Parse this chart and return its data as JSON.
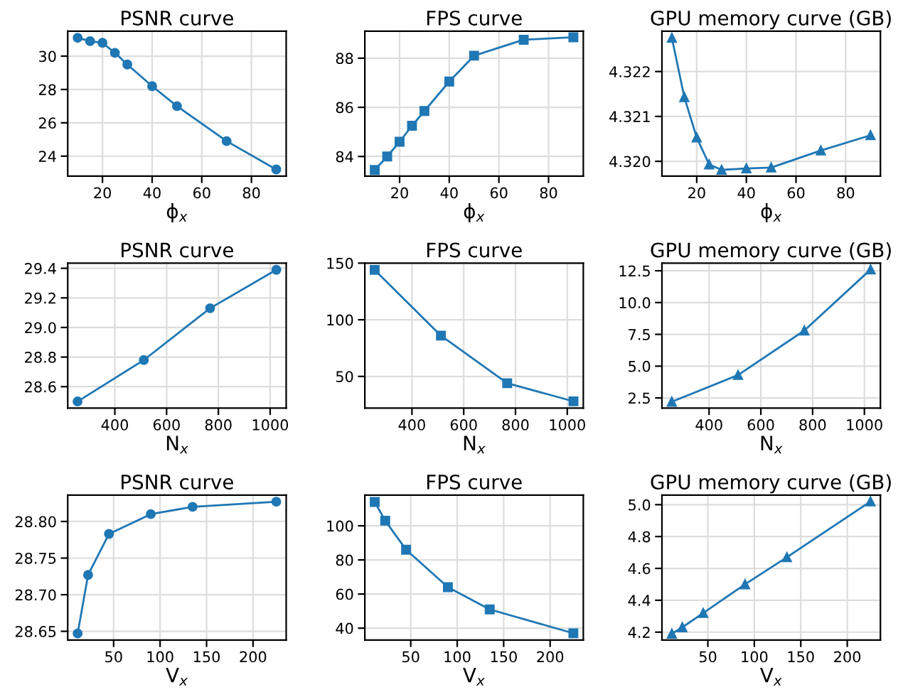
{
  "chart_data": [
    {
      "type": "line",
      "title": "PSNR curve",
      "xlabel": "ϕ$_{x}$",
      "x": [
        10,
        15,
        20,
        25,
        30,
        40,
        50,
        70,
        90
      ],
      "series": [
        {
          "color": "#1f77b4",
          "values": [
            31.1,
            30.9,
            30.8,
            30.2,
            29.5,
            28.2,
            27.0,
            24.9,
            23.2
          ]
        }
      ],
      "marker": "circle",
      "grid": true,
      "xlim": [
        6,
        94
      ],
      "xticks": [
        20,
        40,
        60,
        80
      ],
      "ylim": [
        22.8,
        31.5
      ],
      "yticks": [
        24,
        26,
        28,
        30
      ]
    },
    {
      "type": "line",
      "title": "FPS curve",
      "xlabel": "ϕ$_{x}$",
      "x": [
        10,
        15,
        20,
        25,
        30,
        40,
        50,
        70,
        90
      ],
      "series": [
        {
          "color": "#1f77b4",
          "values": [
            83.45,
            84.0,
            84.6,
            85.25,
            85.85,
            87.05,
            88.1,
            88.75,
            88.85
          ]
        }
      ],
      "marker": "square",
      "grid": true,
      "xlim": [
        6,
        94
      ],
      "xticks": [
        20,
        40,
        60,
        80
      ],
      "ylim": [
        83.2,
        89.1
      ],
      "yticks": [
        84,
        86,
        88
      ]
    },
    {
      "type": "line",
      "title": "GPU memory curve (GB)",
      "xlabel": "ϕ$_{x}$",
      "x": [
        10,
        15,
        20,
        25,
        30,
        40,
        50,
        70,
        90
      ],
      "series": [
        {
          "color": "#1f77b4",
          "values": [
            4.32275,
            4.32143,
            4.32053,
            4.31993,
            4.31981,
            4.31984,
            4.31986,
            4.32024,
            4.32058
          ]
        }
      ],
      "marker": "triangle",
      "grid": true,
      "xlim": [
        6,
        94
      ],
      "xticks": [
        20,
        40,
        60,
        80
      ],
      "ylim": [
        4.31967,
        4.3229
      ],
      "yticks": [
        {
          "value": 4.32,
          "label": "4.320"
        },
        4.321,
        4.322
      ]
    },
    {
      "type": "line",
      "title": "PSNR curve",
      "xlabel": "N$_{x}$",
      "x": [
        256,
        512,
        768,
        1024
      ],
      "series": [
        {
          "color": "#1f77b4",
          "values": [
            28.5,
            28.78,
            29.13,
            29.39
          ]
        }
      ],
      "marker": "circle",
      "grid": true,
      "xlim": [
        218,
        1062
      ],
      "xticks": [
        400,
        600,
        800,
        1000
      ],
      "ylim": [
        28.455,
        29.435
      ],
      "yticks": [
        28.6,
        28.8,
        {
          "value": 29,
          "label": "29.0"
        },
        29.2,
        29.4
      ]
    },
    {
      "type": "line",
      "title": "FPS curve",
      "xlabel": "N$_{x}$",
      "x": [
        256,
        512,
        768,
        1024
      ],
      "series": [
        {
          "color": "#1f77b4",
          "values": [
            144,
            86,
            44,
            28
          ]
        }
      ],
      "marker": "square",
      "grid": true,
      "xlim": [
        218,
        1062
      ],
      "xticks": [
        400,
        600,
        800,
        1000
      ],
      "ylim": [
        22,
        150
      ],
      "yticks": [
        50,
        100,
        150
      ]
    },
    {
      "type": "line",
      "title": "GPU memory curve (GB)",
      "xlabel": "N$_{x}$",
      "x": [
        256,
        512,
        768,
        1024
      ],
      "series": [
        {
          "color": "#1f77b4",
          "values": [
            2.2,
            4.3,
            7.8,
            12.6
          ]
        }
      ],
      "marker": "triangle",
      "grid": true,
      "xlim": [
        218,
        1062
      ],
      "xticks": [
        400,
        600,
        800,
        1000
      ],
      "ylim": [
        1.7,
        13.1
      ],
      "yticks": [
        2.5,
        {
          "value": 5,
          "label": "5.0"
        },
        7.5,
        {
          "value": 10,
          "label": "10.0"
        },
        12.5
      ]
    },
    {
      "type": "line",
      "title": "PSNR curve",
      "xlabel": "V$_{x}$",
      "x": [
        11.25,
        22.5,
        45,
        90,
        135,
        225
      ],
      "series": [
        {
          "color": "#1f77b4",
          "values": [
            28.647,
            28.727,
            28.783,
            28.81,
            28.82,
            28.827
          ]
        }
      ],
      "marker": "circle",
      "grid": true,
      "xlim": [
        0.6,
        235.7
      ],
      "xticks": [
        50,
        100,
        150,
        200
      ],
      "ylim": [
        28.638,
        28.836
      ],
      "yticks": [
        28.65,
        {
          "value": 28.7,
          "label": "28.70"
        },
        28.75,
        {
          "value": 28.8,
          "label": "28.80"
        }
      ]
    },
    {
      "type": "line",
      "title": "FPS curve",
      "xlabel": "V$_{x}$",
      "x": [
        11.25,
        22.5,
        45,
        90,
        135,
        225
      ],
      "series": [
        {
          "color": "#1f77b4",
          "values": [
            114,
            103,
            86,
            64,
            51,
            37
          ]
        }
      ],
      "marker": "square",
      "grid": true,
      "xlim": [
        0.6,
        235.7
      ],
      "xticks": [
        50,
        100,
        150,
        200
      ],
      "ylim": [
        33,
        118
      ],
      "yticks": [
        40,
        60,
        80,
        100
      ]
    },
    {
      "type": "line",
      "title": "GPU memory curve (GB)",
      "xlabel": "V$_{x}$",
      "x": [
        11.25,
        22.5,
        45,
        90,
        135,
        225
      ],
      "series": [
        {
          "color": "#1f77b4",
          "values": [
            4.19,
            4.23,
            4.32,
            4.5,
            4.67,
            5.02
          ]
        }
      ],
      "marker": "triangle",
      "grid": true,
      "xlim": [
        0.6,
        235.7
      ],
      "xticks": [
        50,
        100,
        150,
        200
      ],
      "ylim": [
        4.15,
        5.06
      ],
      "yticks": [
        4.2,
        4.4,
        4.6,
        4.8,
        {
          "value": 5,
          "label": "5.0"
        }
      ]
    }
  ]
}
